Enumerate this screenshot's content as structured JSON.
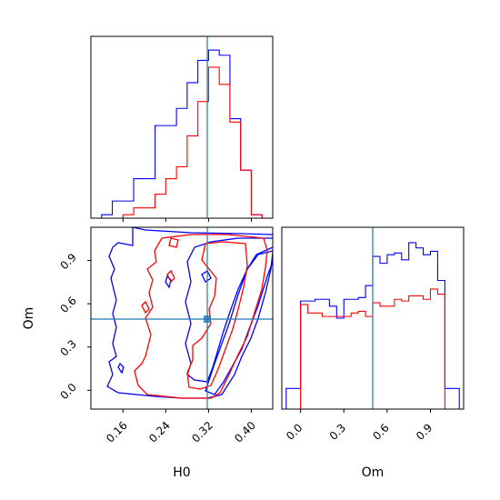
{
  "chart_data": {
    "type": "corner",
    "parameters": [
      "H0",
      "Om"
    ],
    "truth": {
      "H0": 0.338,
      "Om": 0.49
    },
    "colors": {
      "series_blue": "#0000ff",
      "series_red": "#ff0000",
      "truth": "#1f77b4"
    },
    "panels": [
      {
        "id": "hist_H0",
        "type": "step-histogram",
        "xlim": [
          0.1,
          0.44
        ],
        "ylim": [
          0,
          1.06
        ],
        "x_ticks": [
          0.16,
          0.24,
          0.32,
          0.4
        ],
        "x_tick_labels_shown": false,
        "series": [
          {
            "color": "blue",
            "bin_edges": [
              0.12,
              0.14,
              0.16,
              0.18,
              0.2,
              0.22,
              0.24,
              0.26,
              0.28,
              0.3,
              0.32,
              0.34,
              0.36,
              0.38,
              0.4,
              0.42
            ],
            "counts": [
              0.02,
              0.1,
              0.1,
              0.23,
              0.23,
              0.54,
              0.54,
              0.64,
              0.79,
              0.92,
              0.98,
              0.95,
              0.58,
              0.28,
              0.02
            ]
          },
          {
            "color": "red",
            "bin_edges": [
              0.12,
              0.14,
              0.16,
              0.18,
              0.2,
              0.22,
              0.24,
              0.26,
              0.28,
              0.3,
              0.32,
              0.34,
              0.36,
              0.38,
              0.4,
              0.42
            ],
            "counts": [
              0,
              0,
              0.02,
              0.06,
              0.06,
              0.14,
              0.23,
              0.3,
              0.48,
              0.68,
              0.88,
              0.78,
              0.56,
              0.28,
              0.02
            ]
          }
        ]
      },
      {
        "id": "joint_H0_Om",
        "type": "contour",
        "xlabel": "H0",
        "ylabel": "Om",
        "xlim": [
          0.1,
          0.44
        ],
        "ylim": [
          -0.13,
          1.13
        ],
        "x_ticks": [
          "0.16",
          "0.24",
          "0.32",
          "0.40"
        ],
        "y_ticks": [
          "0.0",
          "0.3",
          "0.6",
          "0.9"
        ],
        "series": [
          {
            "color": "blue",
            "levels": 2
          },
          {
            "color": "red",
            "levels": 2
          }
        ]
      },
      {
        "id": "hist_Om",
        "type": "step-histogram",
        "xlabel": "Om",
        "xlim": [
          -0.13,
          1.13
        ],
        "ylim": [
          0,
          1.06
        ],
        "x_ticks": [
          "0.0",
          "0.3",
          "0.6",
          "0.9"
        ],
        "series": [
          {
            "color": "blue",
            "bin_edges": [
              -0.1,
              -0.05,
              0.0,
              0.05,
              0.1,
              0.15,
              0.2,
              0.25,
              0.3,
              0.35,
              0.4,
              0.45,
              0.5,
              0.55,
              0.6,
              0.65,
              0.7,
              0.75,
              0.8,
              0.85,
              0.9,
              0.95,
              1.0,
              1.05,
              1.1
            ],
            "counts": [
              0.12,
              0.12,
              0.63,
              0.63,
              0.64,
              0.64,
              0.6,
              0.53,
              0.64,
              0.64,
              0.65,
              0.72,
              0.89,
              0.85,
              0.9,
              0.91,
              0.87,
              0.97,
              0.94,
              0.9,
              0.92,
              0.75,
              0.12,
              0.12
            ]
          },
          {
            "color": "red",
            "bin_edges": [
              -0.1,
              -0.05,
              0.0,
              0.05,
              0.1,
              0.15,
              0.2,
              0.25,
              0.3,
              0.35,
              0.4,
              0.45,
              0.5,
              0.55,
              0.6,
              0.65,
              0.7,
              0.75,
              0.8,
              0.85,
              0.9,
              0.95,
              1.0,
              1.05,
              1.1
            ],
            "counts": [
              0,
              0,
              0.61,
              0.56,
              0.56,
              0.54,
              0.54,
              0.54,
              0.54,
              0.56,
              0.57,
              0.54,
              0.62,
              0.6,
              0.6,
              0.64,
              0.63,
              0.66,
              0.66,
              0.64,
              0.7,
              0.67,
              0,
              0
            ]
          }
        ]
      }
    ]
  }
}
